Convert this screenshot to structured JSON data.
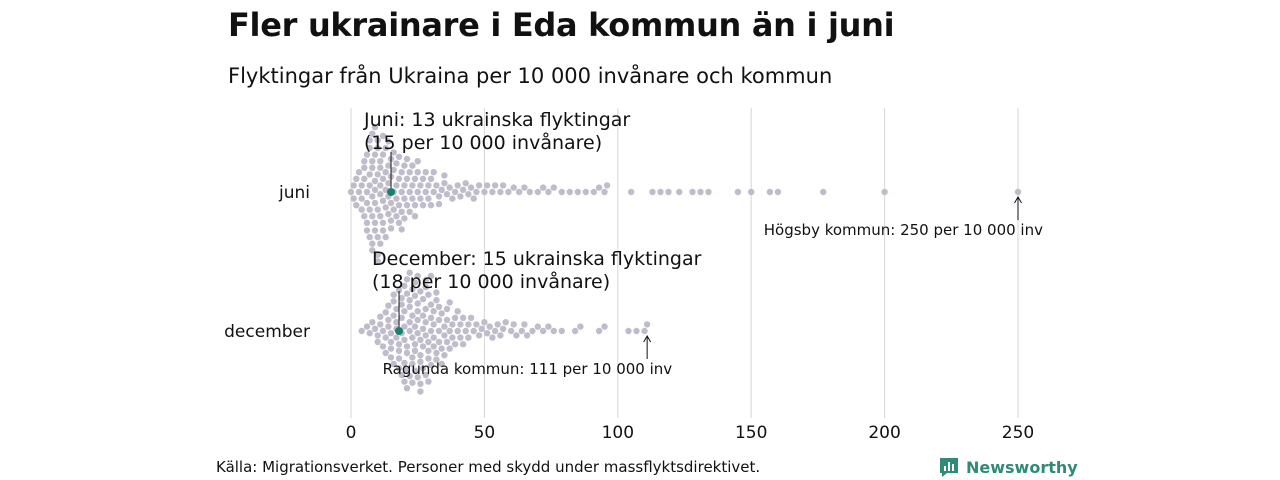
{
  "header": {
    "title": "Fler ukrainare i Eda kommun än i juni",
    "subtitle": "Flyktingar från Ukraina per 10 000 invånare och kommun"
  },
  "footer": {
    "source": "Källa: Migrationsverket. Personer med skydd under massflyktsdirektivet.",
    "brand": "Newsworthy"
  },
  "colors": {
    "dot": "#bfbccb",
    "highlight": "#1a7f70",
    "grid": "#d6d6d6",
    "brand": "#2f8a78"
  },
  "chart_data": {
    "type": "scatter",
    "subtype": "beeswarm",
    "xlim": [
      0,
      250
    ],
    "xticks": [
      0,
      50,
      100,
      150,
      200,
      250
    ],
    "xtick_labels": [
      "0",
      "50",
      "100",
      "150",
      "200",
      "250"
    ],
    "grid": true,
    "categories": [
      "juni",
      "december"
    ],
    "series": [
      {
        "name": "juni",
        "highlight": {
          "value": 15,
          "label": [
            "Juni: 13 ukrainska flyktingar",
            "(15 per 10 000 invånare)"
          ]
        },
        "max_note": {
          "value": 250,
          "label": "Högsby kommun: 250 per 10 000 inv"
        },
        "values": [
          0,
          1,
          1,
          2,
          2,
          3,
          3,
          4,
          4,
          4,
          5,
          5,
          5,
          5,
          6,
          6,
          6,
          6,
          6,
          7,
          7,
          7,
          7,
          7,
          7,
          8,
          8,
          8,
          8,
          8,
          8,
          8,
          9,
          9,
          9,
          9,
          9,
          9,
          9,
          10,
          10,
          10,
          10,
          10,
          10,
          10,
          11,
          11,
          11,
          11,
          11,
          11,
          12,
          12,
          12,
          12,
          12,
          12,
          13,
          13,
          13,
          13,
          13,
          14,
          14,
          14,
          14,
          14,
          15,
          15,
          15,
          15,
          15,
          16,
          16,
          16,
          16,
          17,
          17,
          17,
          17,
          18,
          18,
          18,
          18,
          19,
          19,
          19,
          19,
          20,
          20,
          20,
          20,
          21,
          21,
          21,
          22,
          22,
          22,
          23,
          23,
          23,
          24,
          24,
          24,
          25,
          25,
          25,
          26,
          26,
          27,
          27,
          28,
          28,
          29,
          29,
          30,
          30,
          31,
          31,
          32,
          33,
          33,
          34,
          35,
          35,
          36,
          37,
          38,
          39,
          40,
          41,
          42,
          43,
          44,
          45,
          46,
          47,
          48,
          50,
          51,
          53,
          54,
          56,
          57,
          59,
          61,
          63,
          65,
          67,
          70,
          72,
          74,
          76,
          79,
          82,
          85,
          88,
          91,
          93,
          95,
          96,
          105,
          113,
          116,
          119,
          123,
          128,
          131,
          134,
          145,
          150,
          157,
          160,
          177,
          200,
          250
        ]
      },
      {
        "name": "december",
        "highlight": {
          "value": 18,
          "label": [
            "December: 15 ukrainska flyktingar",
            "(18 per 10 000 invånare)"
          ]
        },
        "max_note": {
          "value": 111,
          "label": "Ragunda kommun: 111 per 10 000 inv"
        },
        "values": [
          4,
          6,
          7,
          8,
          9,
          10,
          10,
          11,
          11,
          12,
          12,
          13,
          13,
          13,
          14,
          14,
          14,
          15,
          15,
          15,
          15,
          16,
          16,
          16,
          16,
          17,
          17,
          17,
          17,
          18,
          18,
          18,
          18,
          18,
          19,
          19,
          19,
          19,
          19,
          20,
          20,
          20,
          20,
          20,
          20,
          21,
          21,
          21,
          21,
          21,
          21,
          22,
          22,
          22,
          22,
          22,
          22,
          23,
          23,
          23,
          23,
          23,
          23,
          24,
          24,
          24,
          24,
          24,
          24,
          25,
          25,
          25,
          25,
          25,
          25,
          26,
          26,
          26,
          26,
          26,
          26,
          27,
          27,
          27,
          27,
          27,
          28,
          28,
          28,
          28,
          28,
          28,
          29,
          29,
          29,
          29,
          29,
          30,
          30,
          30,
          30,
          30,
          31,
          31,
          31,
          31,
          32,
          32,
          32,
          32,
          33,
          33,
          33,
          33,
          34,
          34,
          34,
          35,
          35,
          35,
          36,
          36,
          36,
          37,
          37,
          37,
          38,
          38,
          39,
          39,
          40,
          40,
          41,
          41,
          42,
          42,
          43,
          44,
          44,
          45,
          46,
          47,
          48,
          49,
          50,
          51,
          52,
          53,
          54,
          55,
          56,
          57,
          58,
          60,
          61,
          62,
          64,
          65,
          66,
          68,
          70,
          72,
          74,
          76,
          79,
          84,
          86,
          93,
          95,
          104,
          107,
          110,
          111
        ]
      }
    ]
  }
}
